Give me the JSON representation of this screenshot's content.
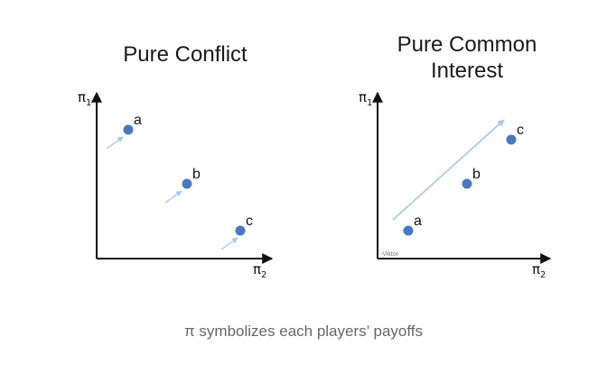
{
  "panels": [
    {
      "title_lines": [
        "Pure Conflict"
      ],
      "y_axis": {
        "symbol": "π",
        "sub": "1"
      },
      "x_axis": {
        "symbol": "π",
        "sub": "2"
      },
      "points": [
        {
          "label": "a"
        },
        {
          "label": "b"
        },
        {
          "label": "c"
        }
      ]
    },
    {
      "title_lines": [
        "Pure Common",
        "Interest"
      ],
      "y_axis": {
        "symbol": "π",
        "sub": "1"
      },
      "x_axis": {
        "symbol": "π",
        "sub": "2"
      },
      "points": [
        {
          "label": "a"
        },
        {
          "label": "b"
        },
        {
          "label": "c"
        }
      ],
      "signature": "-Viktor"
    }
  ],
  "caption": "π symbolizes each players’ payoffs",
  "colors": {
    "point": "#4a78c0",
    "arrow": "#a9c6e8",
    "axis": "#111111"
  }
}
